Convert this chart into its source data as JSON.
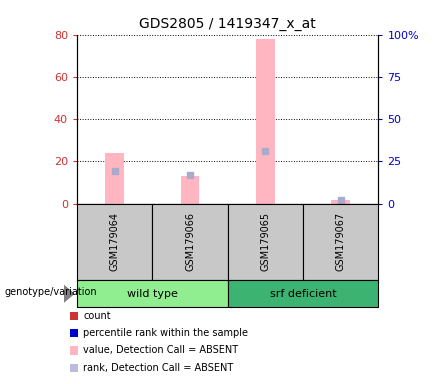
{
  "title": "GDS2805 / 1419347_x_at",
  "samples": [
    "GSM179064",
    "GSM179066",
    "GSM179065",
    "GSM179067"
  ],
  "groups": [
    {
      "label": "wild type",
      "color": "#90EE90",
      "indices": [
        0,
        1
      ]
    },
    {
      "label": "srf deficient",
      "color": "#3CB371",
      "indices": [
        2,
        3
      ]
    }
  ],
  "pink_bars": [
    24,
    13,
    78,
    1.5
  ],
  "blue_squares": [
    19,
    17,
    31,
    2
  ],
  "left_ylim": [
    0,
    80
  ],
  "right_ylim": [
    0,
    100
  ],
  "left_yticks": [
    0,
    20,
    40,
    60,
    80
  ],
  "right_yticks": [
    0,
    25,
    50,
    75,
    100
  ],
  "right_yticklabels": [
    "0",
    "25",
    "50",
    "75",
    "100%"
  ],
  "left_tick_color": "#CC3333",
  "right_tick_color": "#0000CC",
  "bar_width": 0.25,
  "sample_area_color": "#C8C8C8",
  "legend_items": [
    {
      "color": "#CC3333",
      "label": "count"
    },
    {
      "color": "#0000CC",
      "label": "percentile rank within the sample"
    },
    {
      "color": "#FFB6C1",
      "label": "value, Detection Call = ABSENT"
    },
    {
      "color": "#BBBBDD",
      "label": "rank, Detection Call = ABSENT"
    }
  ],
  "genotype_label": "genotype/variation"
}
